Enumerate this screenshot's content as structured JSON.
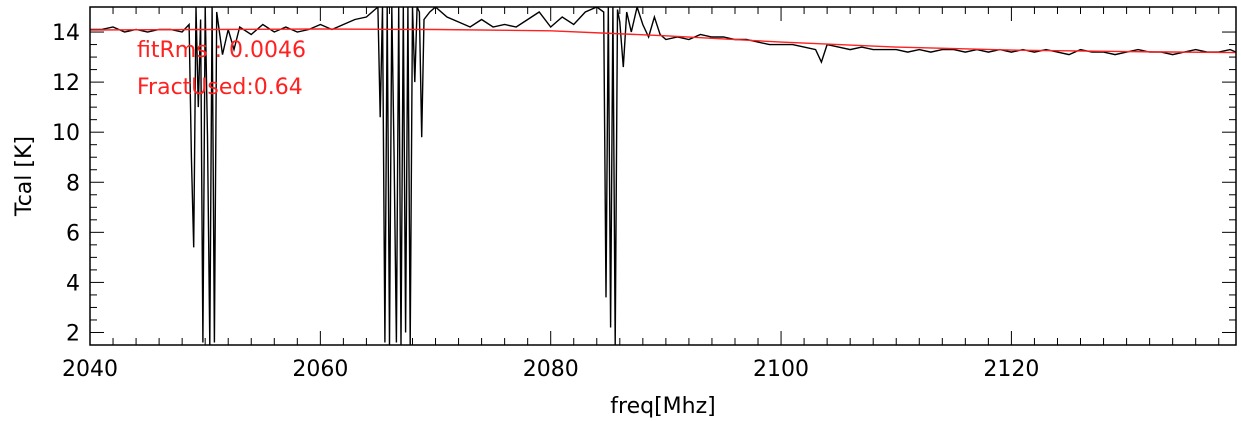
{
  "chart_data": {
    "type": "line",
    "title": "",
    "xlabel": "freq[Mhz]",
    "ylabel": "Tcal [K]",
    "xlim": [
      2040,
      2139.5
    ],
    "ylim": [
      1.5,
      15
    ],
    "x_ticks": [
      2040,
      2060,
      2080,
      2100,
      2120
    ],
    "y_ticks": [
      2,
      4,
      6,
      8,
      10,
      12,
      14
    ],
    "grid": false,
    "series": [
      {
        "color": "#000000",
        "x": [
          2040,
          2041,
          2042,
          2043,
          2044,
          2045,
          2046,
          2047,
          2048,
          2048.6,
          2048.8,
          2049.0,
          2049.2,
          2049.4,
          2049.6,
          2049.8,
          2050.0,
          2050.2,
          2050.4,
          2050.6,
          2050.8,
          2051.0,
          2051.5,
          2052,
          2052.5,
          2053,
          2054,
          2055,
          2056,
          2057,
          2058,
          2059,
          2060,
          2061,
          2062,
          2063,
          2064,
          2065,
          2065.2,
          2065.4,
          2065.6,
          2065.8,
          2066.0,
          2066.2,
          2066.4,
          2066.6,
          2066.8,
          2067.0,
          2067.2,
          2067.4,
          2067.6,
          2067.8,
          2068.0,
          2068.2,
          2068.4,
          2068.6,
          2068.8,
          2069.0,
          2069.5,
          2070,
          2071,
          2072,
          2073,
          2074,
          2075,
          2076,
          2077,
          2078,
          2079,
          2080,
          2081,
          2082,
          2083,
          2084,
          2084.6,
          2084.8,
          2085.0,
          2085.2,
          2085.4,
          2085.6,
          2085.8,
          2086.0,
          2086.3,
          2086.6,
          2087,
          2087.5,
          2088,
          2088.5,
          2089,
          2089.5,
          2090,
          2091,
          2092,
          2093,
          2094,
          2095,
          2096,
          2097,
          2098,
          2099,
          2100,
          2101,
          2102,
          2103,
          2103.5,
          2104,
          2105,
          2106,
          2107,
          2108,
          2109,
          2110,
          2111,
          2112,
          2113,
          2114,
          2115,
          2116,
          2117,
          2118,
          2119,
          2120,
          2121,
          2122,
          2123,
          2124,
          2125,
          2126,
          2127,
          2128,
          2129,
          2130,
          2131,
          2132,
          2133,
          2134,
          2135,
          2136,
          2137,
          2138,
          2139,
          2139.5
        ],
        "y": [
          14.1,
          14.1,
          14.2,
          14.0,
          14.1,
          14.0,
          14.1,
          14.1,
          14.0,
          14.3,
          9.0,
          5.4,
          15.0,
          11.0,
          14.5,
          1.6,
          15.0,
          9.8,
          1.5,
          15.0,
          1.6,
          14.8,
          13.1,
          14.1,
          13.3,
          14.2,
          13.9,
          14.3,
          14.0,
          14.2,
          14.0,
          14.1,
          14.3,
          14.1,
          14.3,
          14.5,
          14.6,
          15.0,
          10.6,
          15.0,
          1.6,
          15.0,
          1.5,
          15.0,
          9.0,
          1.6,
          15.0,
          1.5,
          15.0,
          2.0,
          15.0,
          1.5,
          15.0,
          12.0,
          15.0,
          14.8,
          9.8,
          14.5,
          14.8,
          15.0,
          14.6,
          14.4,
          14.2,
          14.5,
          14.2,
          14.3,
          14.2,
          14.5,
          14.8,
          14.2,
          14.6,
          14.3,
          14.8,
          15.0,
          14.8,
          3.4,
          15.0,
          2.2,
          15.0,
          1.5,
          14.9,
          14.4,
          12.6,
          14.8,
          14.0,
          15.0,
          14.3,
          13.8,
          14.6,
          13.9,
          13.7,
          13.8,
          13.7,
          13.9,
          13.8,
          13.8,
          13.7,
          13.7,
          13.6,
          13.5,
          13.5,
          13.5,
          13.4,
          13.3,
          12.8,
          13.5,
          13.4,
          13.3,
          13.4,
          13.3,
          13.3,
          13.3,
          13.2,
          13.3,
          13.2,
          13.3,
          13.3,
          13.2,
          13.3,
          13.2,
          13.3,
          13.2,
          13.3,
          13.2,
          13.3,
          13.2,
          13.1,
          13.3,
          13.2,
          13.2,
          13.1,
          13.2,
          13.3,
          13.2,
          13.2,
          13.1,
          13.2,
          13.3,
          13.2,
          13.2,
          13.3,
          13.2
        ]
      },
      {
        "color": "#ff2020",
        "x": [
          2040,
          2050,
          2060,
          2070,
          2080,
          2090,
          2100,
          2110,
          2120,
          2130,
          2139.5
        ],
        "y": [
          14.08,
          14.1,
          14.12,
          14.1,
          14.05,
          13.85,
          13.6,
          13.4,
          13.28,
          13.22,
          13.18
        ]
      }
    ],
    "annotations": [
      {
        "text": "fitRms   : 0.0046",
        "color": "#ff2020"
      },
      {
        "text": "FractUsed:0.64",
        "color": "#ff2020"
      }
    ]
  }
}
